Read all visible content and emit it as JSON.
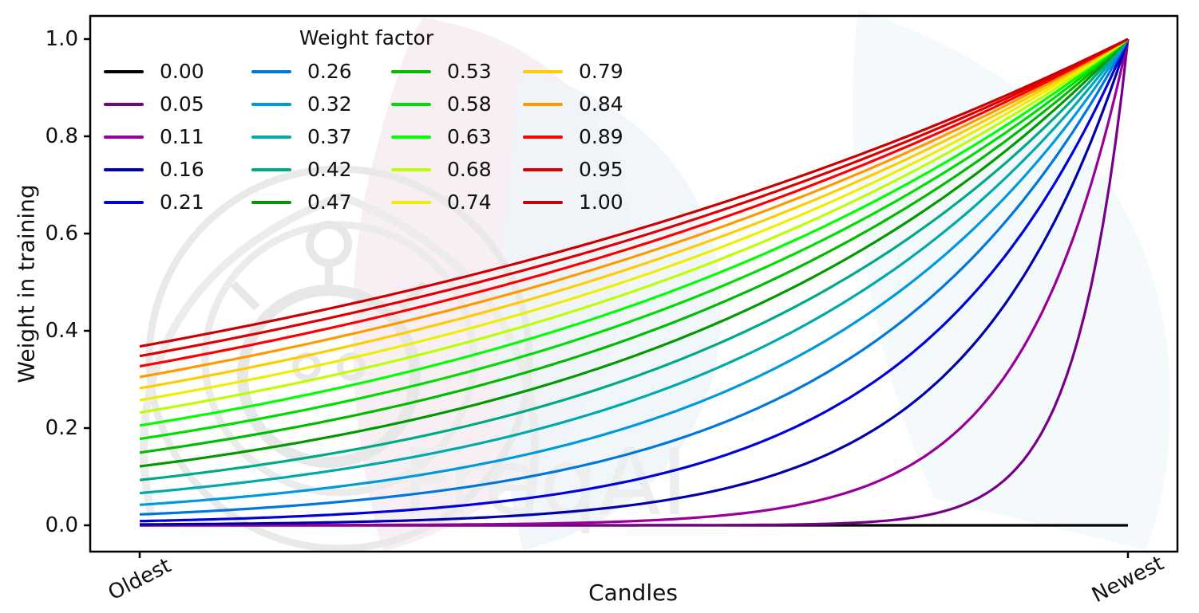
{
  "figure": {
    "watermark": {
      "text": "FreqAI",
      "text_color": "#ededed",
      "emblem_color": "#e8e8e8",
      "leaf_pink": "#f8eff4",
      "leaf_blue": "#eef5f9"
    }
  },
  "chart_data": {
    "type": "line",
    "title": "",
    "xlabel": "Candles",
    "ylabel": "Weight in training",
    "x_tick_labels": [
      "Oldest",
      "Newest"
    ],
    "y_tick_labels": [
      "0.0",
      "0.2",
      "0.4",
      "0.6",
      "0.8",
      "1.0"
    ],
    "y_ticks": [
      0.0,
      0.2,
      0.4,
      0.6,
      0.8,
      1.0
    ],
    "xlim_note": "x axis spans training data from Oldest candle (x=0) to Newest candle (x=1)",
    "ylim": [
      0,
      1
    ],
    "grid": false,
    "legend": {
      "title": "Weight factor",
      "location": "upper left",
      "columns": 4,
      "frame": false,
      "fill_order": "column-major"
    },
    "formula": "weight(x) = exp(-(1 - x) / factor) for x in [0,1]; factor = 0 gives weight = 0 everywhere",
    "series": [
      {
        "label": "0.00",
        "factor": 0.0,
        "color": "#000000",
        "start_value": 0.0
      },
      {
        "label": "0.05",
        "factor": 0.0526,
        "color": "#770088",
        "start_value": 0.0
      },
      {
        "label": "0.11",
        "factor": 0.1053,
        "color": "#990099",
        "start_value": 0.0001
      },
      {
        "label": "0.16",
        "factor": 0.1579,
        "color": "#0000aa",
        "start_value": 0.0018
      },
      {
        "label": "0.21",
        "factor": 0.2105,
        "color": "#0000dd",
        "start_value": 0.0087
      },
      {
        "label": "0.26",
        "factor": 0.2632,
        "color": "#0077dd",
        "start_value": 0.022
      },
      {
        "label": "0.32",
        "factor": 0.3158,
        "color": "#0099dd",
        "start_value": 0.042
      },
      {
        "label": "0.37",
        "factor": 0.3684,
        "color": "#00aaaa",
        "start_value": 0.066
      },
      {
        "label": "0.42",
        "factor": 0.4211,
        "color": "#00aa88",
        "start_value": 0.093
      },
      {
        "label": "0.47",
        "factor": 0.4737,
        "color": "#009900",
        "start_value": 0.121
      },
      {
        "label": "0.53",
        "factor": 0.5263,
        "color": "#00bb00",
        "start_value": 0.15
      },
      {
        "label": "0.58",
        "factor": 0.5789,
        "color": "#00dd00",
        "start_value": 0.178
      },
      {
        "label": "0.63",
        "factor": 0.6316,
        "color": "#00ff00",
        "start_value": 0.205
      },
      {
        "label": "0.68",
        "factor": 0.6842,
        "color": "#bbff00",
        "start_value": 0.232
      },
      {
        "label": "0.74",
        "factor": 0.7368,
        "color": "#eeee00",
        "start_value": 0.257
      },
      {
        "label": "0.79",
        "factor": 0.7895,
        "color": "#ffcc00",
        "start_value": 0.282
      },
      {
        "label": "0.84",
        "factor": 0.8421,
        "color": "#ff9900",
        "start_value": 0.305
      },
      {
        "label": "0.89",
        "factor": 0.8947,
        "color": "#ff0000",
        "start_value": 0.327
      },
      {
        "label": "0.95",
        "factor": 0.9474,
        "color": "#dd0000",
        "start_value": 0.348
      },
      {
        "label": "1.00",
        "factor": 1.0,
        "color": "#cc0000",
        "start_value": 0.368
      }
    ]
  }
}
